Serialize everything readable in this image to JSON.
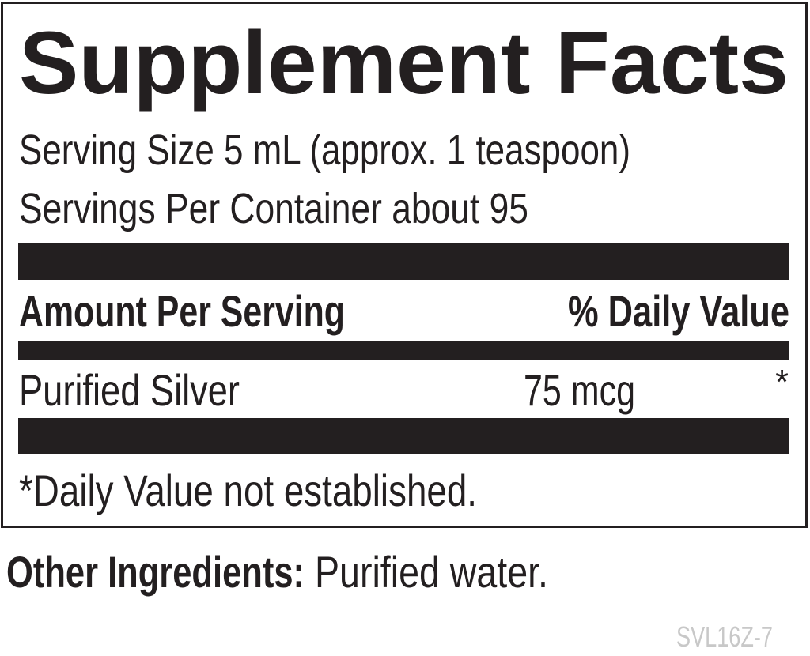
{
  "title": "Supplement Facts",
  "serving_size": "Serving Size 5 mL (approx. 1 teaspoon)",
  "servings_per_container": "Servings Per Container about 95",
  "header": {
    "amount_per_serving": "Amount Per Serving",
    "daily_value": "% Daily Value"
  },
  "rows": [
    {
      "name": "Purified Silver",
      "amount": "75 mcg",
      "dv": "*"
    }
  ],
  "footnote": "*Daily Value not established.",
  "other_ingredients": {
    "label": "Other Ingredients:",
    "value": "Purified water."
  },
  "code": "SVL16Z-7",
  "colors": {
    "ink": "#231f20",
    "code": "#c8c8c8"
  }
}
